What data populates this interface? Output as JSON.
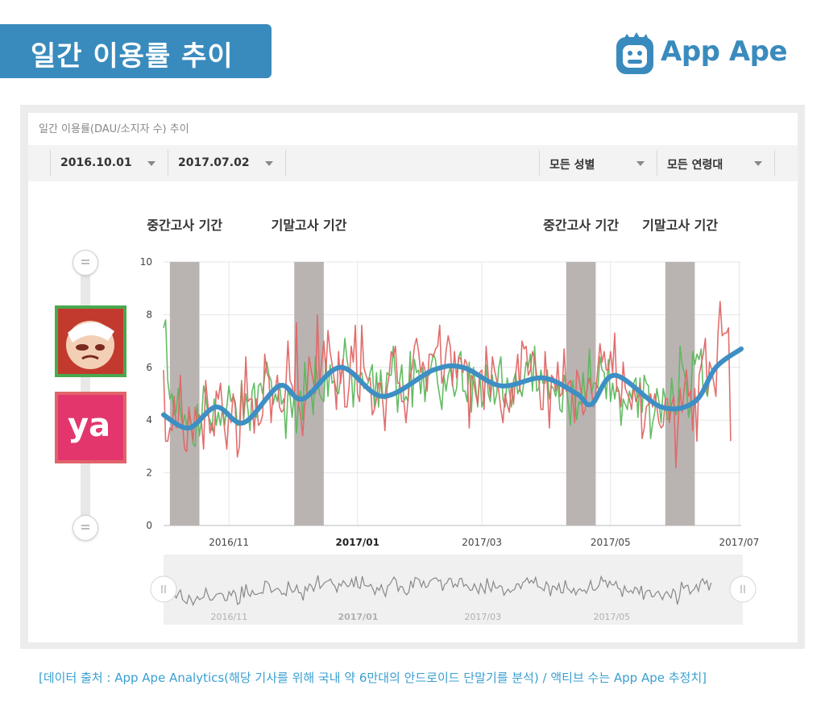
{
  "header": {
    "title": "일간 이용률 추이",
    "logo_text": "App Ape"
  },
  "panel": {
    "title": "일간 이용률(DAU/소지자 수) 추이",
    "filters": {
      "start_date": "2016.10.01",
      "end_date": "2017.07.02",
      "gender": "모든 성별",
      "age": "모든 연령대"
    }
  },
  "apps": {
    "ya_label": "ya"
  },
  "footer": {
    "source": "[데이터 출처 : App Ape Analytics(해당 기사를 위해 국내 약 6만대의 안드로이드 단말기를 분석) / 액티브 수는 App Ape 추정치]"
  },
  "colors": {
    "brand": "#3a8bbd",
    "series_red": "#e06666",
    "series_green": "#5cb85c",
    "trend": "#3d8fc4",
    "band": "#b5b0ae"
  },
  "chart_data": {
    "type": "line",
    "title": "",
    "xlabel": "",
    "ylabel": "",
    "ylim": [
      0,
      10
    ],
    "yticks": [
      0,
      2,
      4,
      6,
      8,
      10
    ],
    "x_range_days": [
      0,
      274
    ],
    "xticks": [
      {
        "label": "2016/11",
        "day": 31,
        "bold": false
      },
      {
        "label": "2017/01",
        "day": 92,
        "bold": true
      },
      {
        "label": "2017/03",
        "day": 151,
        "bold": false
      },
      {
        "label": "2017/05",
        "day": 212,
        "bold": false
      },
      {
        "label": "2017/07",
        "day": 273,
        "bold": false
      }
    ],
    "bands": [
      {
        "label": "중간고사 기간",
        "start": 3,
        "end": 17
      },
      {
        "label": "기말고사 기간",
        "start": 62,
        "end": 76
      },
      {
        "label": "중간고사 기간",
        "start": 191,
        "end": 205
      },
      {
        "label": "기말고사 기간",
        "start": 238,
        "end": 252
      }
    ],
    "trend": {
      "name": "",
      "points": [
        {
          "day": 0,
          "value": 4.2
        },
        {
          "day": 12,
          "value": 3.7
        },
        {
          "day": 25,
          "value": 4.5
        },
        {
          "day": 38,
          "value": 3.9
        },
        {
          "day": 55,
          "value": 5.3
        },
        {
          "day": 66,
          "value": 4.8
        },
        {
          "day": 84,
          "value": 6.0
        },
        {
          "day": 104,
          "value": 4.9
        },
        {
          "day": 128,
          "value": 5.9
        },
        {
          "day": 142,
          "value": 6.0
        },
        {
          "day": 160,
          "value": 5.3
        },
        {
          "day": 180,
          "value": 5.6
        },
        {
          "day": 196,
          "value": 5.0
        },
        {
          "day": 203,
          "value": 4.6
        },
        {
          "day": 214,
          "value": 5.7
        },
        {
          "day": 236,
          "value": 4.5
        },
        {
          "day": 252,
          "value": 4.7
        },
        {
          "day": 262,
          "value": 6.0
        },
        {
          "day": 274,
          "value": 6.7
        }
      ]
    },
    "series": [
      {
        "name": "",
        "color": "#e06666",
        "values": [
          5.9,
          3.2,
          3.2,
          3.7,
          3.6,
          4.9,
          3.7,
          4.0,
          5.7,
          3.8,
          2.9,
          2.8,
          4.5,
          3.9,
          3.2,
          4.5,
          3.8,
          4.2,
          3.9,
          2.9,
          5.5,
          4.6,
          3.5,
          3.9,
          3.4,
          5.1,
          4.8,
          5.4,
          4.4,
          3.6,
          2.9,
          4.3,
          3.9,
          5.0,
          4.5,
          2.6,
          3.0,
          5.4,
          4.1,
          6.4,
          4.7,
          4.8,
          4.8,
          3.5,
          4.8,
          3.8,
          3.9,
          4.2,
          6.5,
          5.8,
          5.6,
          3.9,
          5.2,
          5.2,
          5.7,
          4.5,
          4.3,
          4.4,
          5.3,
          7.0,
          5.5,
          5.3,
          4.8,
          7.7,
          4.6,
          4.2,
          3.4,
          4.6,
          5.0,
          6.4,
          5.9,
          5.5,
          5.0,
          8.0,
          5.4,
          6.2,
          7.0,
          5.8,
          7.4,
          6.6,
          6.1,
          5.5,
          4.4,
          6.6,
          5.4,
          6.3,
          4.5,
          4.5,
          5.3,
          6.8,
          6.2,
          7.6,
          5.0,
          4.7,
          7.6,
          6.0,
          5.7,
          5.5,
          5.6,
          4.2,
          4.4,
          4.8,
          5.4,
          5.4,
          4.7,
          3.6,
          5.2,
          5.7,
          6.6,
          6.4,
          6.8,
          5.4,
          5.4,
          4.7,
          4.7,
          3.9,
          4.8,
          5.7,
          6.0,
          6.8,
          7.1,
          6.6,
          5.8,
          6.2,
          5.9,
          5.1,
          6.5,
          6.5,
          6.4,
          6.7,
          6.8,
          7.6,
          5.4,
          5.7,
          6.6,
          7.2,
          6.8,
          5.3,
          6.6,
          5.6,
          6.4,
          6.3,
          5.8,
          6.3,
          6.1,
          3.7,
          5.7,
          5.5,
          5.0,
          4.6,
          5.8,
          5.9,
          4.4,
          6.8,
          5.7,
          4.9,
          6.4,
          5.9,
          5.5,
          5.1,
          4.4,
          3.9,
          5.0,
          4.6,
          4.3,
          5.4,
          4.6,
          5.7,
          6.5,
          5.1,
          7.0,
          6.7,
          6.8,
          5.7,
          5.9,
          6.6,
          6.3,
          5.7,
          5.5,
          4.4,
          4.4,
          6.6,
          5.3,
          3.7,
          5.7,
          5.6,
          5.1,
          6.2,
          4.9,
          5.0,
          6.7,
          5.1,
          5.4,
          5.5,
          4.9,
          3.9,
          5.9,
          5.6,
          5.1,
          4.2,
          4.4,
          5.3,
          5.6,
          5.1,
          4.5,
          5.0,
          6.0,
          6.9,
          6.2,
          6.6,
          5.9,
          5.9,
          6.6,
          5.8,
          7.3,
          5.1,
          5.1,
          4.5,
          6.2,
          5.2,
          5.0,
          4.8,
          4.4,
          5.3,
          4.7,
          4.9,
          5.4,
          3.3,
          3.7,
          4.5,
          4.6,
          5.0,
          4.5,
          5.0,
          4.5,
          3.9,
          3.7,
          3.8,
          4.8,
          4.8,
          3.9,
          4.6,
          4.9,
          2.2,
          3.8,
          5.2,
          4.3,
          5.2,
          5.9,
          4.9,
          5.1,
          3.6,
          5.2,
          3.2,
          5.7,
          6.1,
          6.5,
          7.1,
          5.0,
          6.2,
          5.9,
          5.4,
          4.9,
          7.3,
          8.5,
          7.2,
          7.3,
          7.3,
          7.5,
          3.2
        ]
      },
      {
        "name": "",
        "color": "#5cb85c",
        "values": [
          7.5,
          7.8,
          5.5,
          4.8,
          5.0,
          4.2,
          4.3,
          5.2,
          4.3,
          3.8,
          4.2,
          3.8,
          4.2,
          3.8,
          3.1,
          3.0,
          4.6,
          3.4,
          4.0,
          5.3,
          4.9,
          4.2,
          4.0,
          3.6,
          4.8,
          3.8,
          4.3,
          3.8,
          4.5,
          3.8,
          4.5,
          5.3,
          4.7,
          4.9,
          4.7,
          3.8,
          3.8,
          5.5,
          4.0,
          5.0,
          4.4,
          3.6,
          5.1,
          5.4,
          4.1,
          5.3,
          5.4,
          5.0,
          5.7,
          6.2,
          5.7,
          5.5,
          4.6,
          5.0,
          4.7,
          5.4,
          4.6,
          4.8,
          3.3,
          5.1,
          4.9,
          4.1,
          5.0,
          3.5,
          4.7,
          5.1,
          4.0,
          6.2,
          4.8,
          5.1,
          5.1,
          4.2,
          6.4,
          5.6,
          5.0,
          4.8,
          4.7,
          6.3,
          4.9,
          6.1,
          5.4,
          5.5,
          5.1,
          5.0,
          5.6,
          6.0,
          7.1,
          6.3,
          5.8,
          5.9,
          4.5,
          5.8,
          5.7,
          5.7,
          5.8,
          5.2,
          5.3,
          5.4,
          5.8,
          6.1,
          4.5,
          5.8,
          4.5,
          5.9,
          4.9,
          4.8,
          5.8,
          5.7,
          5.7,
          6.8,
          5.7,
          4.3,
          5.5,
          6.1,
          4.7,
          4.9,
          4.7,
          6.6,
          4.5,
          6.3,
          5.8,
          5.9,
          5.0,
          6.0,
          4.7,
          5.8,
          5.7,
          6.1,
          6.5,
          6.3,
          5.4,
          4.9,
          4.4,
          5.7,
          5.1,
          5.7,
          6.0,
          5.4,
          4.9,
          5.2,
          6.4,
          6.6,
          5.1,
          5.1,
          4.7,
          6.2,
          4.3,
          6.0,
          5.3,
          4.5,
          5.8,
          4.5,
          4.8,
          6.1,
          5.0,
          4.7,
          5.7,
          4.6,
          5.0,
          6.0,
          6.4,
          4.8,
          4.5,
          5.6,
          5.1,
          4.5,
          5.5,
          5.8,
          5.0,
          5.2,
          4.9,
          5.5,
          6.2,
          6.0,
          6.5,
          5.1,
          6.8,
          5.1,
          5.2,
          5.9,
          5.4,
          5.4,
          5.9,
          4.8,
          5.3,
          5.2,
          4.9,
          5.4,
          4.4,
          4.3,
          5.7,
          5.3,
          4.6,
          3.8,
          5.5,
          4.9,
          4.0,
          4.7,
          4.6,
          5.8,
          4.8,
          5.2,
          6.7,
          5.0,
          5.4,
          5.4,
          5.2,
          6.4,
          5.9,
          5.8,
          4.8,
          6.3,
          4.7,
          5.4,
          4.8,
          5.3,
          5.1,
          3.8,
          4.8,
          4.6,
          4.4,
          5.1,
          4.8,
          5.4,
          5.6,
          4.1,
          5.6,
          4.3,
          5.7,
          5.4,
          5.3,
          3.3,
          3.9,
          4.3,
          5.2,
          4.7,
          3.9,
          5.2,
          4.8,
          4.0,
          4.1,
          5.6,
          4.7,
          4.2,
          4.4,
          6.8,
          6.1,
          5.8,
          5.3,
          4.1,
          4.6,
          6.6,
          6.1,
          6.5,
          6.3,
          6.7,
          5.0,
          5.2,
          4.9,
          5.6
        ]
      }
    ]
  }
}
